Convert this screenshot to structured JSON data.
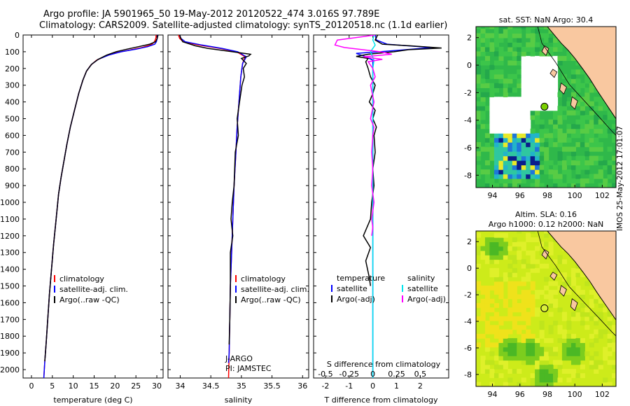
{
  "header": {
    "line1": "Argo profile: JA 5901965_50 19-May-2012 20120522_474 3.016S 97.789E",
    "line2": "Climatology: CARS2009. Satellite-adjusted climatology: synTS_20120518.nc (1.1d earlier)"
  },
  "colors": {
    "clim": "#ff0000",
    "sat": "#0000ff",
    "argo": "#000000",
    "sat_s": "#00e5ee",
    "argo_s": "#ff00ff",
    "land": "#f9c8a0"
  },
  "depth_axis": {
    "ylim": [
      0,
      2050
    ],
    "ticks": [
      0,
      100,
      200,
      300,
      400,
      500,
      600,
      700,
      800,
      900,
      1000,
      1100,
      1200,
      1300,
      1400,
      1500,
      1600,
      1700,
      1800,
      1900,
      2000
    ]
  },
  "chart_data": [
    {
      "type": "line",
      "id": "temperature",
      "xlabel": "temperature (deg C)",
      "xlim": [
        -2,
        31.5
      ],
      "xticks": [
        0,
        5,
        10,
        15,
        20,
        25,
        30
      ],
      "legend": [
        "climatology",
        "satellite-adj. clim.",
        "Argo(..raw -QC)"
      ],
      "series": [
        {
          "name": "climatology",
          "color": "#ff0000",
          "points": [
            [
              29.8,
              0
            ],
            [
              29.8,
              15
            ],
            [
              29.6,
              30
            ],
            [
              29.3,
              45
            ],
            [
              28.5,
              60
            ],
            [
              26.5,
              75
            ],
            [
              23.5,
              90
            ],
            [
              20.5,
              105
            ],
            [
              17.8,
              125
            ],
            [
              15.6,
              150
            ],
            [
              14.2,
              180
            ],
            [
              13.1,
              220
            ],
            [
              12.3,
              270
            ],
            [
              11.3,
              350
            ],
            [
              10.3,
              450
            ],
            [
              9.3,
              550
            ],
            [
              8.5,
              650
            ],
            [
              7.8,
              750
            ],
            [
              7.1,
              850
            ],
            [
              6.5,
              950
            ],
            [
              5.9,
              1100
            ],
            [
              5.3,
              1250
            ],
            [
              4.8,
              1400
            ],
            [
              4.3,
              1550
            ],
            [
              3.9,
              1700
            ],
            [
              3.5,
              1850
            ],
            [
              3.2,
              1950
            ],
            [
              2.95,
              2050
            ]
          ]
        },
        {
          "name": "satellite-adj. clim.",
          "color": "#0000ff",
          "points": [
            [
              30.2,
              0
            ],
            [
              30.1,
              20
            ],
            [
              29.9,
              40
            ],
            [
              29.5,
              55
            ],
            [
              27.8,
              70
            ],
            [
              25,
              85
            ],
            [
              21.5,
              100
            ],
            [
              18.5,
              120
            ],
            [
              16,
              145
            ],
            [
              14.4,
              175
            ],
            [
              13.2,
              215
            ],
            [
              12.3,
              270
            ],
            [
              11.3,
              350
            ],
            [
              10.3,
              450
            ],
            [
              9.3,
              550
            ],
            [
              8.5,
              650
            ],
            [
              7.8,
              750
            ],
            [
              7.1,
              850
            ],
            [
              6.5,
              950
            ],
            [
              5.9,
              1100
            ],
            [
              5.3,
              1250
            ],
            [
              4.8,
              1400
            ],
            [
              4.3,
              1550
            ],
            [
              3.9,
              1700
            ],
            [
              3.5,
              1850
            ],
            [
              3.2,
              1950
            ],
            [
              2.95,
              2050
            ]
          ]
        },
        {
          "name": "Argo(..raw -QC)",
          "color": "#000000",
          "points": [
            [
              30.3,
              0
            ],
            [
              30.1,
              20
            ],
            [
              29.7,
              40
            ],
            [
              28.3,
              55
            ],
            [
              25.6,
              70
            ],
            [
              22.8,
              85
            ],
            [
              20.3,
              100
            ],
            [
              18,
              120
            ],
            [
              16,
              145
            ],
            [
              14.4,
              175
            ],
            [
              13.2,
              215
            ],
            [
              12.3,
              270
            ],
            [
              11.3,
              350
            ],
            [
              10.3,
              450
            ],
            [
              9.3,
              550
            ],
            [
              8.5,
              650
            ],
            [
              7.8,
              750
            ],
            [
              7.1,
              850
            ],
            [
              6.5,
              950
            ],
            [
              5.9,
              1100
            ],
            [
              5.3,
              1250
            ],
            [
              4.8,
              1400
            ],
            [
              4.3,
              1550
            ],
            [
              3.9,
              1700
            ],
            [
              3.5,
              1850
            ],
            [
              3.2,
              1950
            ]
          ]
        }
      ]
    },
    {
      "type": "line",
      "id": "salinity",
      "xlabel": "salinity",
      "xlim": [
        33.8,
        36.1
      ],
      "xticks": [
        34,
        34.5,
        35,
        35.5,
        36
      ],
      "legend": [
        "climatology",
        "satellite-adj. clim.",
        "Argo(..raw -QC)"
      ],
      "annotation": [
        "J-ARGO",
        "PI: JAMSTEC"
      ],
      "series": [
        {
          "name": "climatology",
          "color": "#ff0000",
          "points": [
            [
              33.97,
              0
            ],
            [
              33.99,
              20
            ],
            [
              34.05,
              40
            ],
            [
              34.3,
              60
            ],
            [
              34.65,
              80
            ],
            [
              34.92,
              100
            ],
            [
              35.06,
              130
            ],
            [
              35.02,
              170
            ],
            [
              34.99,
              250
            ],
            [
              34.96,
              400
            ],
            [
              34.93,
              550
            ],
            [
              34.91,
              700
            ],
            [
              34.88,
              900
            ],
            [
              34.86,
              1100
            ],
            [
              34.84,
              1300
            ],
            [
              34.82,
              1500
            ],
            [
              34.81,
              1700
            ],
            [
              34.8,
              1900
            ],
            [
              34.79,
              2050
            ]
          ]
        },
        {
          "name": "satellite-adj. clim.",
          "color": "#0000ff",
          "points": [
            [
              33.99,
              0
            ],
            [
              34.01,
              20
            ],
            [
              34.08,
              40
            ],
            [
              34.35,
              60
            ],
            [
              34.68,
              80
            ],
            [
              34.94,
              100
            ],
            [
              35.08,
              130
            ],
            [
              35.02,
              170
            ],
            [
              34.99,
              250
            ],
            [
              34.96,
              400
            ],
            [
              34.93,
              550
            ],
            [
              34.91,
              700
            ],
            [
              34.88,
              900
            ],
            [
              34.86,
              1100
            ],
            [
              34.84,
              1300
            ],
            [
              34.82,
              1500
            ],
            [
              34.81,
              1700
            ],
            [
              34.8,
              1900
            ],
            [
              34.79,
              1960
            ]
          ]
        },
        {
          "name": "Argo(..raw -QC)",
          "color": "#000000",
          "points": [
            [
              33.99,
              0
            ],
            [
              34.01,
              20
            ],
            [
              34.04,
              40
            ],
            [
              34.25,
              65
            ],
            [
              34.45,
              80
            ],
            [
              34.85,
              100
            ],
            [
              35.15,
              115
            ],
            [
              35.12,
              125
            ],
            [
              35.0,
              140
            ],
            [
              35.08,
              170
            ],
            [
              35.03,
              200
            ],
            [
              35.05,
              250
            ],
            [
              35.01,
              300
            ],
            [
              34.97,
              400
            ],
            [
              34.93,
              500
            ],
            [
              34.95,
              600
            ],
            [
              34.9,
              700
            ],
            [
              34.88,
              900
            ],
            [
              34.85,
              1000
            ],
            [
              34.83,
              1100
            ],
            [
              34.86,
              1200
            ],
            [
              34.82,
              1300
            ],
            [
              34.82,
              1500
            ],
            [
              34.81,
              1700
            ],
            [
              34.8,
              1850
            ]
          ]
        }
      ]
    },
    {
      "type": "line",
      "id": "difference",
      "xlabel": "T difference from climatology",
      "xlim": [
        -2.5,
        3.2
      ],
      "xticks": [
        -2,
        -1,
        0,
        1,
        2
      ],
      "secondary_axis_label": "S difference from climatology",
      "secondary_ticks": [
        "-0.5",
        "-0.25",
        "0",
        "0.25",
        "0.5"
      ],
      "secondary_tick_positions_T": [
        -2,
        -1,
        0,
        1,
        2
      ],
      "legend_headers": [
        "temperature",
        "salinity"
      ],
      "legend": [
        "satellite",
        "Argo(-adj)",
        "satellite",
        "Argo(-adj)"
      ],
      "series": [
        {
          "name": "T satellite",
          "color": "#0000ff",
          "points": [
            [
              0.1,
              0
            ],
            [
              0.15,
              30
            ],
            [
              0.6,
              55
            ],
            [
              1.5,
              65
            ],
            [
              2.5,
              75
            ],
            [
              1.2,
              90
            ],
            [
              0.3,
              100
            ],
            [
              -0.7,
              110
            ],
            [
              -0.5,
              120
            ],
            [
              -0.3,
              130
            ],
            [
              0,
              150
            ],
            [
              0,
              250
            ],
            [
              0,
              2050
            ]
          ]
        },
        {
          "name": "T Argo(-adj)",
          "color": "#000000",
          "points": [
            [
              0.2,
              0
            ],
            [
              0.1,
              30
            ],
            [
              0.4,
              55
            ],
            [
              1.6,
              65
            ],
            [
              2.9,
              78
            ],
            [
              1.5,
              88
            ],
            [
              0.9,
              100
            ],
            [
              -0.2,
              115
            ],
            [
              -0.7,
              128
            ],
            [
              -0.2,
              140
            ],
            [
              -0.3,
              160
            ],
            [
              -0.2,
              200
            ],
            [
              -0.1,
              250
            ],
            [
              0.1,
              300
            ],
            [
              0,
              350
            ],
            [
              -0.15,
              400
            ],
            [
              0.1,
              450
            ],
            [
              0,
              500
            ],
            [
              0.15,
              550
            ],
            [
              0.05,
              600
            ],
            [
              0.1,
              700
            ],
            [
              0,
              800
            ],
            [
              0.05,
              900
            ],
            [
              -0.05,
              1000
            ],
            [
              -0.1,
              1100
            ],
            [
              -0.4,
              1200
            ],
            [
              -0.1,
              1270
            ],
            [
              -0.3,
              1350
            ],
            [
              -0.15,
              1450
            ],
            [
              -0.1,
              1500
            ]
          ]
        },
        {
          "name": "S satellite",
          "color": "#00e5ee",
          "points": [
            [
              0.05,
              0
            ],
            [
              0,
              30
            ],
            [
              0.1,
              60
            ],
            [
              -0.1,
              100
            ],
            [
              0.05,
              150
            ],
            [
              0,
              200
            ],
            [
              0,
              2050
            ]
          ]
        },
        {
          "name": "S Argo(-adj)",
          "color": "#ff00ff",
          "points": [
            [
              0.1,
              0
            ],
            [
              -1.5,
              30
            ],
            [
              -1.6,
              60
            ],
            [
              -1.2,
              75
            ],
            [
              -0.3,
              90
            ],
            [
              0.3,
              100
            ],
            [
              0.8,
              115
            ],
            [
              -0.4,
              130
            ],
            [
              0.4,
              145
            ],
            [
              -0.2,
              160
            ],
            [
              0,
              200
            ],
            [
              0.1,
              250
            ],
            [
              -0.1,
              300
            ],
            [
              0.05,
              400
            ],
            [
              -0.1,
              500
            ],
            [
              0.05,
              550
            ],
            [
              0,
              600
            ],
            [
              -0.05,
              700
            ],
            [
              0,
              800
            ],
            [
              -0.05,
              900
            ],
            [
              0.05,
              1000
            ],
            [
              -0.05,
              1100
            ],
            [
              0,
              1150
            ],
            [
              -0.05,
              1200
            ]
          ]
        }
      ]
    },
    {
      "type": "heatmap",
      "id": "sst_map",
      "title": "sat. SST: NaN Argo: 30.4",
      "xlim": [
        92.8,
        103
      ],
      "ylim": [
        -8.9,
        2.8
      ],
      "xticks": [
        94,
        96,
        98,
        100,
        102
      ],
      "yticks": [
        2,
        0,
        -2,
        -4,
        -6,
        -8
      ],
      "argo_position": [
        97.789,
        -3.016
      ]
    },
    {
      "type": "heatmap",
      "id": "sla_map",
      "title": "Altim. SLA: 0.16",
      "subtitle": "Argo h1000: 0.12 h2000: NaN",
      "xlim": [
        92.8,
        103
      ],
      "ylim": [
        -8.9,
        2.8
      ],
      "xticks": [
        94,
        96,
        98,
        100,
        102
      ],
      "yticks": [
        2,
        0,
        -2,
        -4,
        -6,
        -8
      ],
      "argo_position": [
        97.789,
        -3.016
      ]
    }
  ],
  "footer": {
    "side_label": "IMOS 25-May-2012 17:01:07"
  }
}
